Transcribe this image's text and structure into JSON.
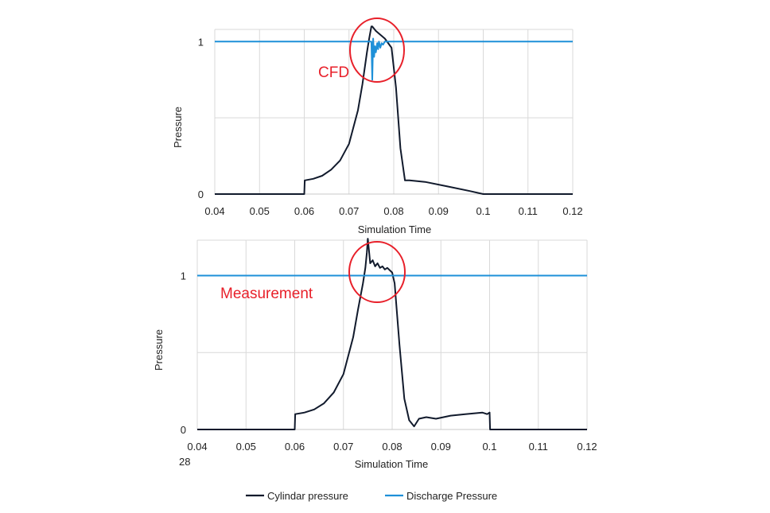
{
  "colors": {
    "cylinder": "#111a2c",
    "discharge": "#1e90d8",
    "annotation": "#e8202a",
    "grid": "#d9d9d9"
  },
  "legend": {
    "items": [
      {
        "label": "Cylindar pressure",
        "color": "#111a2c"
      },
      {
        "label": "Discharge Pressure",
        "color": "#1e90d8"
      }
    ]
  },
  "footnote": "28",
  "chart_data": [
    {
      "type": "line",
      "xlabel": "Simulation Time",
      "ylabel": "Pressure",
      "xlim": [
        0.04,
        0.12
      ],
      "ylim": [
        0,
        1.08
      ],
      "xticks": [
        "0.04",
        "0.05",
        "0.06",
        "0.07",
        "0.08",
        "0.09",
        "0.1",
        "0.11",
        "0.12"
      ],
      "yticks": [
        {
          "value": 0,
          "label": "0"
        },
        {
          "value": 1,
          "label": "1"
        }
      ],
      "grid": true,
      "annotation": "CFD",
      "series": [
        {
          "name": "Cylindar pressure",
          "x": [
            0.04,
            0.06,
            0.0601,
            0.062,
            0.064,
            0.066,
            0.068,
            0.07,
            0.072,
            0.073,
            0.074,
            0.0745,
            0.075,
            0.0752,
            0.076,
            0.078,
            0.0795,
            0.0805,
            0.0815,
            0.0825,
            0.0835,
            0.087,
            0.092,
            0.097,
            0.1,
            0.12
          ],
          "y": [
            0,
            0,
            0.09,
            0.1,
            0.12,
            0.16,
            0.22,
            0.33,
            0.55,
            0.72,
            0.93,
            1.02,
            1.1,
            1.1,
            1.07,
            1.02,
            0.96,
            0.7,
            0.3,
            0.09,
            0.09,
            0.08,
            0.05,
            0.02,
            0,
            0
          ]
        },
        {
          "name": "Discharge Pressure",
          "x": [
            0.04,
            0.075,
            0.0752,
            0.0754,
            0.0756,
            0.0758,
            0.076,
            0.0763,
            0.0765,
            0.0767,
            0.077,
            0.0773,
            0.0776,
            0.078,
            0.12
          ],
          "y": [
            1.0,
            1.0,
            0.75,
            1.02,
            0.9,
            0.97,
            0.93,
            0.99,
            0.95,
            1.0,
            0.96,
            0.99,
            0.98,
            1.0,
            1.0
          ]
        }
      ]
    },
    {
      "type": "line",
      "xlabel": "Simulation Time",
      "ylabel": "Pressure",
      "xlim": [
        0.04,
        0.12
      ],
      "ylim": [
        0,
        1.23
      ],
      "xticks": [
        "0.04",
        "0.05",
        "0.06",
        "0.07",
        "0.08",
        "0.09",
        "0.1",
        "0.11",
        "0.12"
      ],
      "yticks": [
        {
          "value": 0,
          "label": "0"
        },
        {
          "value": 1,
          "label": "1"
        }
      ],
      "grid": true,
      "annotation": "Measurement",
      "series": [
        {
          "name": "Cylindar pressure",
          "x": [
            0.04,
            0.06,
            0.0601,
            0.062,
            0.064,
            0.066,
            0.068,
            0.07,
            0.072,
            0.073,
            0.074,
            0.0745,
            0.0748,
            0.075,
            0.0755,
            0.076,
            0.0765,
            0.077,
            0.0775,
            0.078,
            0.0785,
            0.079,
            0.08,
            0.0805,
            0.0815,
            0.0825,
            0.0835,
            0.0845,
            0.0855,
            0.087,
            0.089,
            0.092,
            0.095,
            0.0985,
            0.0995,
            0.1,
            0.1001,
            0.12
          ],
          "y": [
            0,
            0,
            0.1,
            0.11,
            0.13,
            0.17,
            0.24,
            0.36,
            0.6,
            0.78,
            0.95,
            1.05,
            1.15,
            1.24,
            1.08,
            1.1,
            1.06,
            1.08,
            1.05,
            1.06,
            1.04,
            1.05,
            1.02,
            0.95,
            0.55,
            0.2,
            0.06,
            0.02,
            0.07,
            0.08,
            0.07,
            0.09,
            0.1,
            0.11,
            0.1,
            0.11,
            0,
            0
          ]
        },
        {
          "name": "Discharge Pressure",
          "x": [
            0.04,
            0.12
          ],
          "y": [
            1.0,
            1.0
          ]
        }
      ]
    }
  ]
}
